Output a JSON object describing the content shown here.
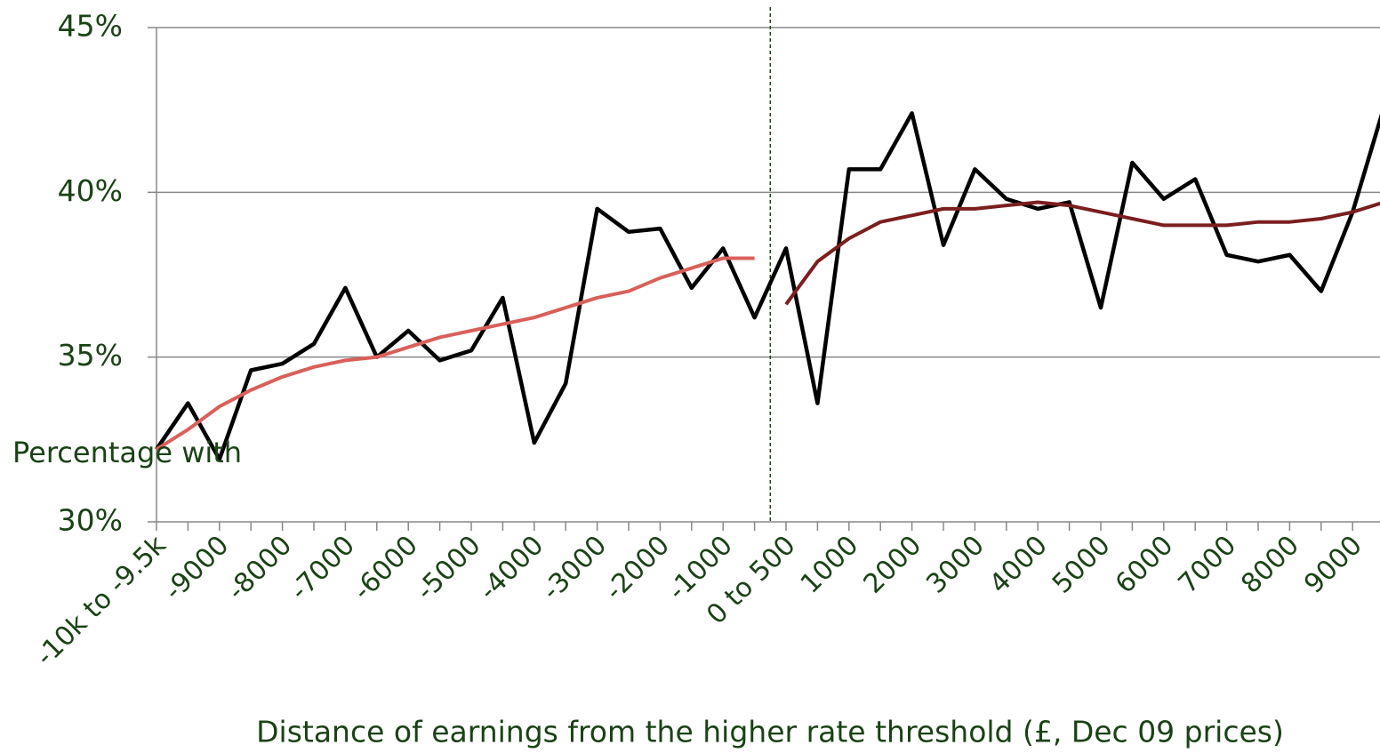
{
  "chart_data": {
    "type": "line",
    "x_label": "Distance of earnings from the higher rate threshold (£, Dec 09 prices)",
    "y_label": "Percentage with",
    "categories": [
      "-10k to -9.5k",
      null,
      "-9000",
      null,
      "-8000",
      null,
      "-7000",
      null,
      "-6000",
      null,
      "-5000",
      null,
      "-4000",
      null,
      "-3000",
      null,
      "-2000",
      null,
      "-1000",
      null,
      "0 to 500",
      null,
      "1000",
      null,
      "2000",
      null,
      "3000",
      null,
      "4000",
      null,
      "5000",
      null,
      "6000",
      null,
      "7000",
      null,
      "8000",
      null,
      "9000",
      null
    ],
    "series": [
      {
        "color": "#000000",
        "values": [
          32.2,
          33.6,
          31.9,
          34.6,
          34.8,
          35.4,
          37.1,
          35.0,
          35.8,
          34.9,
          35.2,
          36.8,
          32.4,
          34.2,
          39.5,
          38.8,
          38.9,
          37.1,
          38.3,
          36.2,
          38.3,
          33.6,
          40.7,
          40.7,
          42.4,
          38.4,
          40.7,
          39.8,
          39.5,
          39.7,
          36.5,
          40.9,
          39.8,
          40.4,
          38.1,
          37.9,
          38.1,
          37.0,
          39.4,
          42.6
        ]
      },
      {
        "color": "#d9605a",
        "values": [
          32.2,
          32.8,
          33.5,
          34.0,
          34.4,
          34.7,
          34.9,
          35.0,
          35.3,
          35.6,
          35.8,
          36.0,
          36.2,
          36.5,
          36.8,
          37.0,
          37.4,
          37.7,
          38.0,
          38.0,
          null,
          null,
          null,
          null,
          null,
          null,
          null,
          null,
          null,
          null,
          null,
          null,
          null,
          null,
          null,
          null,
          null,
          null,
          null,
          null
        ]
      },
      {
        "color": "#7b1e1e",
        "values": [
          null,
          null,
          null,
          null,
          null,
          null,
          null,
          null,
          null,
          null,
          null,
          null,
          null,
          null,
          null,
          null,
          null,
          null,
          null,
          null,
          36.6,
          37.9,
          38.6,
          39.1,
          39.3,
          39.5,
          39.5,
          39.6,
          39.7,
          39.6,
          39.4,
          39.2,
          39.0,
          39.0,
          39.0,
          39.1,
          39.1,
          39.2,
          39.4,
          39.7
        ]
      }
    ],
    "ylim": [
      30,
      45
    ],
    "yticks": [
      {
        "value": 30,
        "label": "30%"
      },
      {
        "value": 35,
        "label": "35%"
      },
      {
        "value": 40,
        "label": "40%"
      },
      {
        "value": 45,
        "label": "45%"
      }
    ],
    "grid": true
  }
}
